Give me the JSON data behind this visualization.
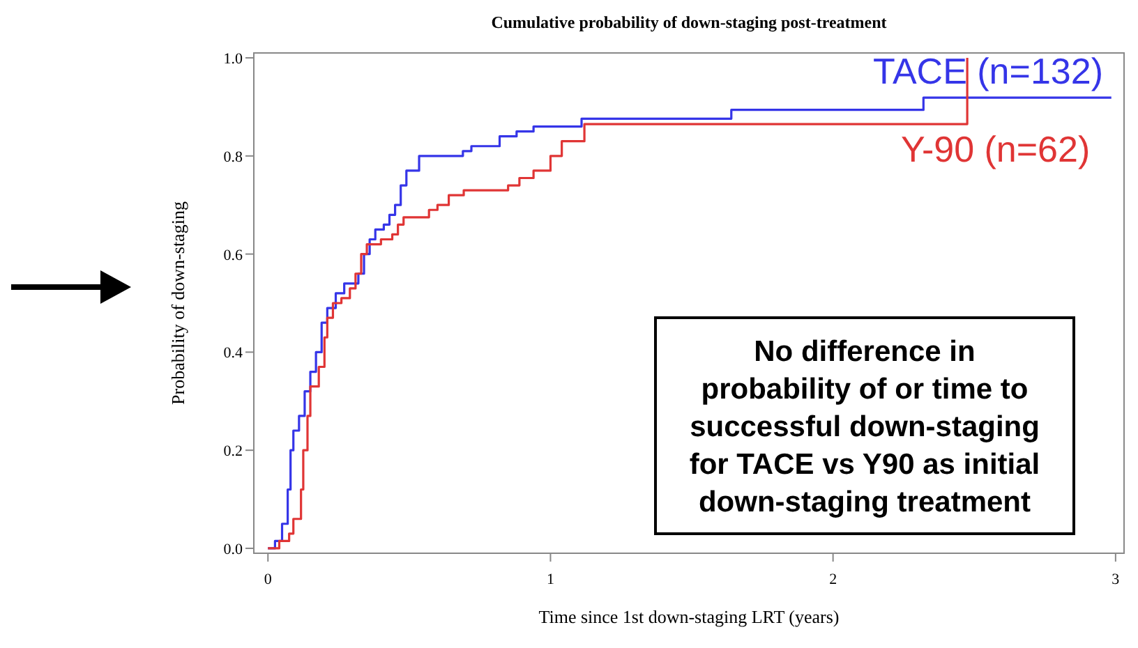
{
  "chart_data": {
    "type": "step",
    "title": "Cumulative probability of down-staging post-treatment",
    "xlabel": "Time since 1st down-staging LRT (years)",
    "ylabel": "Probability of down-staging",
    "xlim": [
      -0.05,
      3.03
    ],
    "ylim": [
      -0.01,
      1.01
    ],
    "xticks": [
      0,
      1,
      2,
      3
    ],
    "yticks": [
      {
        "value": 0,
        "label": "0.0"
      },
      {
        "value": 0.2,
        "label": "0.2"
      },
      {
        "value": 0.4,
        "label": "0.4"
      },
      {
        "value": 0.6,
        "label": "0.6"
      },
      {
        "value": 0.8,
        "label": "0.8"
      },
      {
        "value": 1,
        "label": "1.0"
      }
    ],
    "legend": "top right",
    "grid": false,
    "annotations": [
      "No difference in probability of or time to successful down-staging for TACE vs Y90 as initial down-staging treatment"
    ],
    "series": [
      {
        "name": "TACE (n=132)",
        "color": "#3535e8",
        "x": [
          0,
          0.025,
          0.05,
          0.07,
          0.08,
          0.09,
          0.11,
          0.13,
          0.15,
          0.17,
          0.19,
          0.21,
          0.24,
          0.27,
          0.32,
          0.34,
          0.36,
          0.38,
          0.41,
          0.43,
          0.45,
          0.47,
          0.49,
          0.535,
          0.69,
          0.72,
          0.82,
          0.88,
          0.94,
          1.11,
          1.64,
          2.32,
          2.985
        ],
        "values": [
          0,
          0.015,
          0.05,
          0.12,
          0.2,
          0.24,
          0.27,
          0.32,
          0.36,
          0.4,
          0.46,
          0.49,
          0.52,
          0.54,
          0.56,
          0.6,
          0.63,
          0.65,
          0.66,
          0.68,
          0.7,
          0.74,
          0.77,
          0.8,
          0.81,
          0.82,
          0.84,
          0.85,
          0.86,
          0.876,
          0.894,
          0.919,
          0.919
        ]
      },
      {
        "name": "Y-90 (n=62)",
        "color": "#e03535",
        "x": [
          0,
          0.04,
          0.075,
          0.09,
          0.117,
          0.125,
          0.14,
          0.15,
          0.18,
          0.2,
          0.21,
          0.23,
          0.26,
          0.29,
          0.31,
          0.33,
          0.35,
          0.4,
          0.44,
          0.46,
          0.48,
          0.57,
          0.6,
          0.64,
          0.693,
          0.85,
          0.89,
          0.94,
          1.0,
          1.04,
          1.12,
          2.475,
          2.475
        ],
        "values": [
          0,
          0.015,
          0.03,
          0.06,
          0.12,
          0.2,
          0.27,
          0.33,
          0.37,
          0.43,
          0.47,
          0.5,
          0.51,
          0.53,
          0.56,
          0.6,
          0.62,
          0.63,
          0.64,
          0.66,
          0.675,
          0.69,
          0.7,
          0.72,
          0.73,
          0.74,
          0.755,
          0.77,
          0.8,
          0.83,
          0.865,
          0.865,
          1.0
        ]
      }
    ]
  }
}
